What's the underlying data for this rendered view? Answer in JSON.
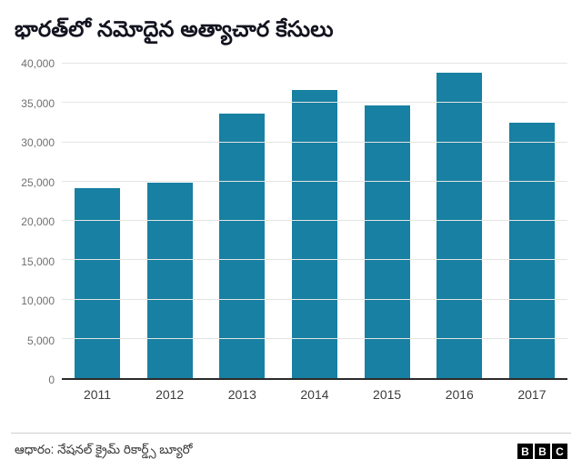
{
  "header": {
    "title": "భారత్‌లో నమోదైన అత్యాచార కేసులు"
  },
  "chart_data": {
    "type": "bar",
    "title": "భారత్‌లో నమోదైన అత్యాచార కేసులు",
    "categories": [
      "2011",
      "2012",
      "2013",
      "2014",
      "2015",
      "2016",
      "2017"
    ],
    "values": [
      24200,
      24900,
      33700,
      36700,
      34650,
      38900,
      32500
    ],
    "xlabel": "",
    "ylabel": "",
    "ylim": [
      0,
      40000
    ],
    "yticks": [
      0,
      5000,
      10000,
      15000,
      20000,
      25000,
      30000,
      35000,
      40000
    ],
    "ytick_labels": [
      "0",
      "5,000",
      "10,000",
      "15,000",
      "20,000",
      "25,000",
      "30,000",
      "35,000",
      "40,000"
    ],
    "bar_color": "#1880a2",
    "grid": true,
    "legend": "none"
  },
  "footer": {
    "source": "ఆధారం: నేషనల్ క్రైమ్ రికార్డ్స్ బ్యూరో",
    "logo_letters": [
      "B",
      "B",
      "C"
    ]
  }
}
